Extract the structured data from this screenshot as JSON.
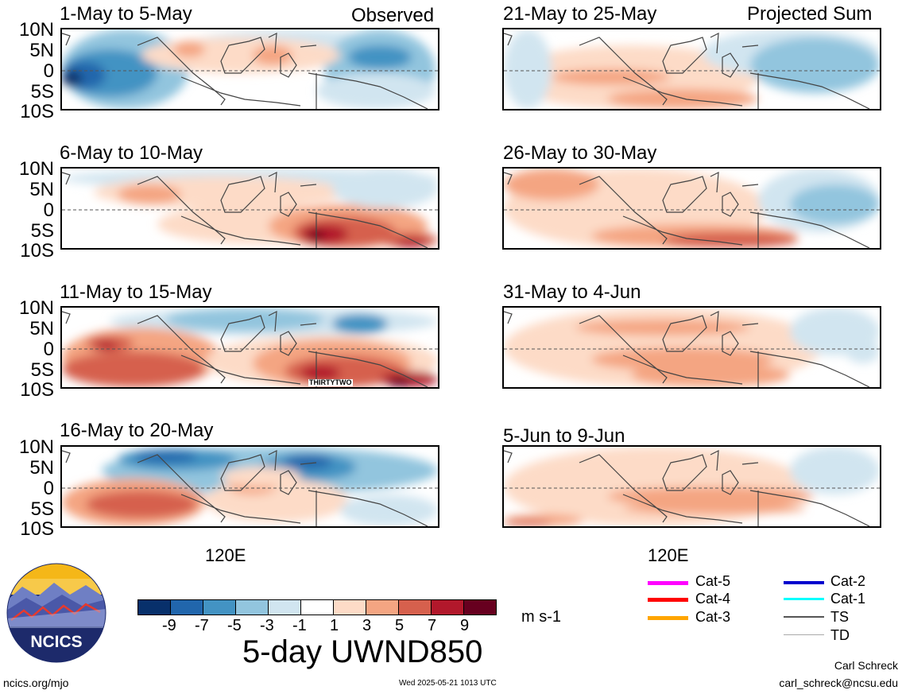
{
  "panels": {
    "observed_header": "Observed",
    "projected_header": "Projected Sum",
    "left": [
      {
        "title": "1-May to 5-May"
      },
      {
        "title": "6-May to 10-May"
      },
      {
        "title": "11-May to 15-May",
        "annotation": "THIRTYTWO"
      },
      {
        "title": "16-May to 20-May"
      }
    ],
    "right": [
      {
        "title": "21-May to 25-May"
      },
      {
        "title": "26-May to 30-May"
      },
      {
        "title": "31-May to 4-Jun"
      },
      {
        "title": "5-Jun to 9-Jun"
      }
    ]
  },
  "axes": {
    "y_ticks": [
      "10N",
      "5N",
      "0",
      "5S",
      "10S"
    ],
    "x_tick": "120E"
  },
  "colorbar": {
    "ticks": [
      "-9",
      "-7",
      "-5",
      "-3",
      "-1",
      "1",
      "3",
      "5",
      "7",
      "9"
    ],
    "colors": [
      "#08306b",
      "#2166ac",
      "#4393c3",
      "#92c5de",
      "#d1e5f0",
      "#ffffff",
      "#fddbc7",
      "#f4a582",
      "#d6604d",
      "#b2182b",
      "#67001f"
    ],
    "units": "m s-1"
  },
  "title": "5-day UWND850",
  "legend": [
    {
      "label": "Cat-5",
      "color": "#ff00ff"
    },
    {
      "label": "Cat-4",
      "color": "#ff0000"
    },
    {
      "label": "Cat-3",
      "color": "#ffa500"
    },
    {
      "label": "Cat-2",
      "color": "#0000cd"
    },
    {
      "label": "Cat-1",
      "color": "#00ffff"
    },
    {
      "label": "TS",
      "color": "#555555"
    },
    {
      "label": "TD",
      "color": "#aaaaaa"
    }
  ],
  "logo": {
    "text": "NCICS"
  },
  "footer": {
    "url": "ncics.org/mjo",
    "timestamp": "Wed 2025-05-21 1013 UTC",
    "author": "Carl Schreck",
    "email": "carl_schreck@ncsu.edu"
  }
}
